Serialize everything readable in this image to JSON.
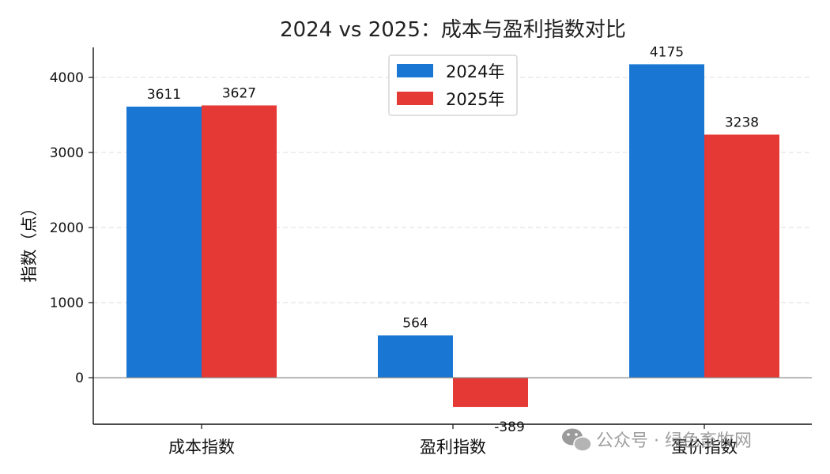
{
  "chart_data": {
    "type": "bar",
    "title": "2024 vs 2025：成本与盈利指数对比",
    "ylabel": "指数（点）",
    "xlabel": "",
    "categories": [
      "成本指数",
      "盈利指数",
      "蛋价指数"
    ],
    "series": [
      {
        "name": "2024年",
        "color": "#1976d2",
        "values": [
          3611,
          564,
          4175
        ]
      },
      {
        "name": "2025年",
        "color": "#e53935",
        "values": [
          3627,
          -389,
          3238
        ]
      }
    ],
    "ylim": [
      -620,
      4400
    ],
    "yticks": [
      0,
      1000,
      2000,
      3000,
      4000
    ],
    "grid": true,
    "legend_position": "top-center"
  },
  "watermark": {
    "icon": "wechat-icon",
    "text": "公众号 · 绿色畜牧网"
  }
}
